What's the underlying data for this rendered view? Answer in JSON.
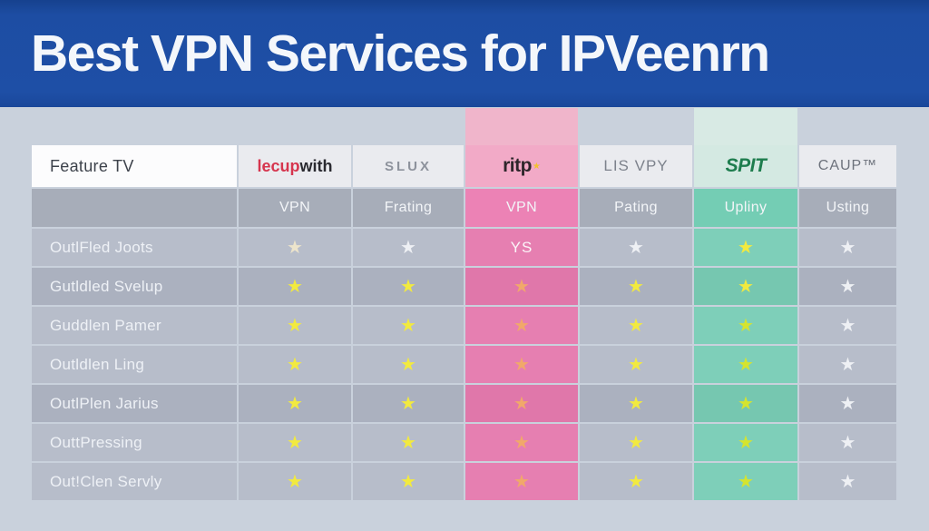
{
  "banner": {
    "title": "Best VPN Services for IPVeenrn",
    "bg_color": "#1d4da1"
  },
  "colors": {
    "highlight_pink": "#e67fb1",
    "highlight_teal": "#74cdb4",
    "star_yellow": "#f2ea3f",
    "star_orange": "#f1a86a",
    "star_lime": "#d5e42f",
    "star_white": "#eef0f4",
    "star_cream": "#ece4cb"
  },
  "table": {
    "feature_header": "Feature TV",
    "columns": [
      {
        "id": "lecupwith",
        "brand_parts": [
          {
            "text": "lecup",
            "color": "#d6354e"
          },
          {
            "text": "with",
            "color": "#2a2a30"
          }
        ],
        "sub_label": "VPN",
        "highlight": "none"
      },
      {
        "id": "slux",
        "brand": "SLUX",
        "sub_label": "Frating",
        "highlight": "none"
      },
      {
        "id": "ritp",
        "brand": "ritp",
        "has_star_badge": true,
        "sub_label": "VPN",
        "highlight": "pink"
      },
      {
        "id": "lisvpy",
        "brand": "LIS VPY",
        "sub_label": "Pating",
        "highlight": "none"
      },
      {
        "id": "spit",
        "brand": "SPIT",
        "sub_label": "Upliny",
        "highlight": "teal"
      },
      {
        "id": "caup",
        "brand": "CAUP™",
        "sub_label": "Usting",
        "highlight": "none"
      }
    ],
    "rows": [
      {
        "label": "OutlFled Joots",
        "shade": "light",
        "cells": [
          {
            "star": "cream"
          },
          {
            "star": "white"
          },
          {
            "text": "YS"
          },
          {
            "star": "white"
          },
          {
            "star": "yellow"
          },
          {
            "star": "white"
          }
        ]
      },
      {
        "label": "Gutldled Svelup",
        "shade": "dark",
        "cells": [
          {
            "star": "yellow"
          },
          {
            "star": "yellow"
          },
          {
            "star": "orange"
          },
          {
            "star": "yellow"
          },
          {
            "star": "yellow"
          },
          {
            "star": "white"
          }
        ]
      },
      {
        "label": "Guddlen Pamer",
        "shade": "light",
        "cells": [
          {
            "star": "yellow"
          },
          {
            "star": "yellow"
          },
          {
            "star": "orange"
          },
          {
            "star": "yellow"
          },
          {
            "star": "lime"
          },
          {
            "star": "white"
          }
        ]
      },
      {
        "label": "Outldlen Ling",
        "shade": "light",
        "cells": [
          {
            "star": "yellow"
          },
          {
            "star": "yellow"
          },
          {
            "star": "orange"
          },
          {
            "star": "yellow"
          },
          {
            "star": "lime"
          },
          {
            "star": "white"
          }
        ]
      },
      {
        "label": "OutlPlen Jarius",
        "shade": "dark",
        "cells": [
          {
            "star": "yellow"
          },
          {
            "star": "yellow"
          },
          {
            "star": "orange"
          },
          {
            "star": "yellow"
          },
          {
            "star": "lime"
          },
          {
            "star": "white"
          }
        ]
      },
      {
        "label": "OuttPressing",
        "shade": "light",
        "cells": [
          {
            "star": "yellow"
          },
          {
            "star": "yellow"
          },
          {
            "star": "orange"
          },
          {
            "star": "yellow"
          },
          {
            "star": "lime"
          },
          {
            "star": "white"
          }
        ]
      },
      {
        "label": "Out!Clen Servly",
        "shade": "light",
        "cells": [
          {
            "star": "yellow"
          },
          {
            "star": "yellow"
          },
          {
            "star": "orange"
          },
          {
            "star": "yellow"
          },
          {
            "star": "lime"
          },
          {
            "star": "white"
          }
        ]
      }
    ]
  }
}
